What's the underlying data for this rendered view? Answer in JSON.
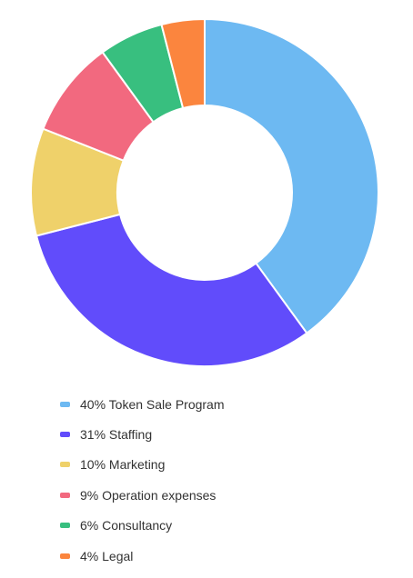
{
  "chart_data": {
    "type": "pie",
    "title": "",
    "legend_placement": "bottom",
    "categories": [
      "Token Sale Program",
      "Staffing",
      "Marketing",
      "Operation expenses",
      "Consultancy",
      "Legal"
    ],
    "values": [
      40,
      31,
      10,
      9,
      6,
      4
    ],
    "labels": [
      "40% Token Sale Program",
      "31% Staffing",
      "10% Marketing",
      "9% Operation expenses",
      "6% Consultancy",
      "4% Legal"
    ],
    "colors": [
      "#6db9f2",
      "#614cfb",
      "#efd16a",
      "#f2697f",
      "#38bf7f",
      "#fb853e"
    ]
  }
}
